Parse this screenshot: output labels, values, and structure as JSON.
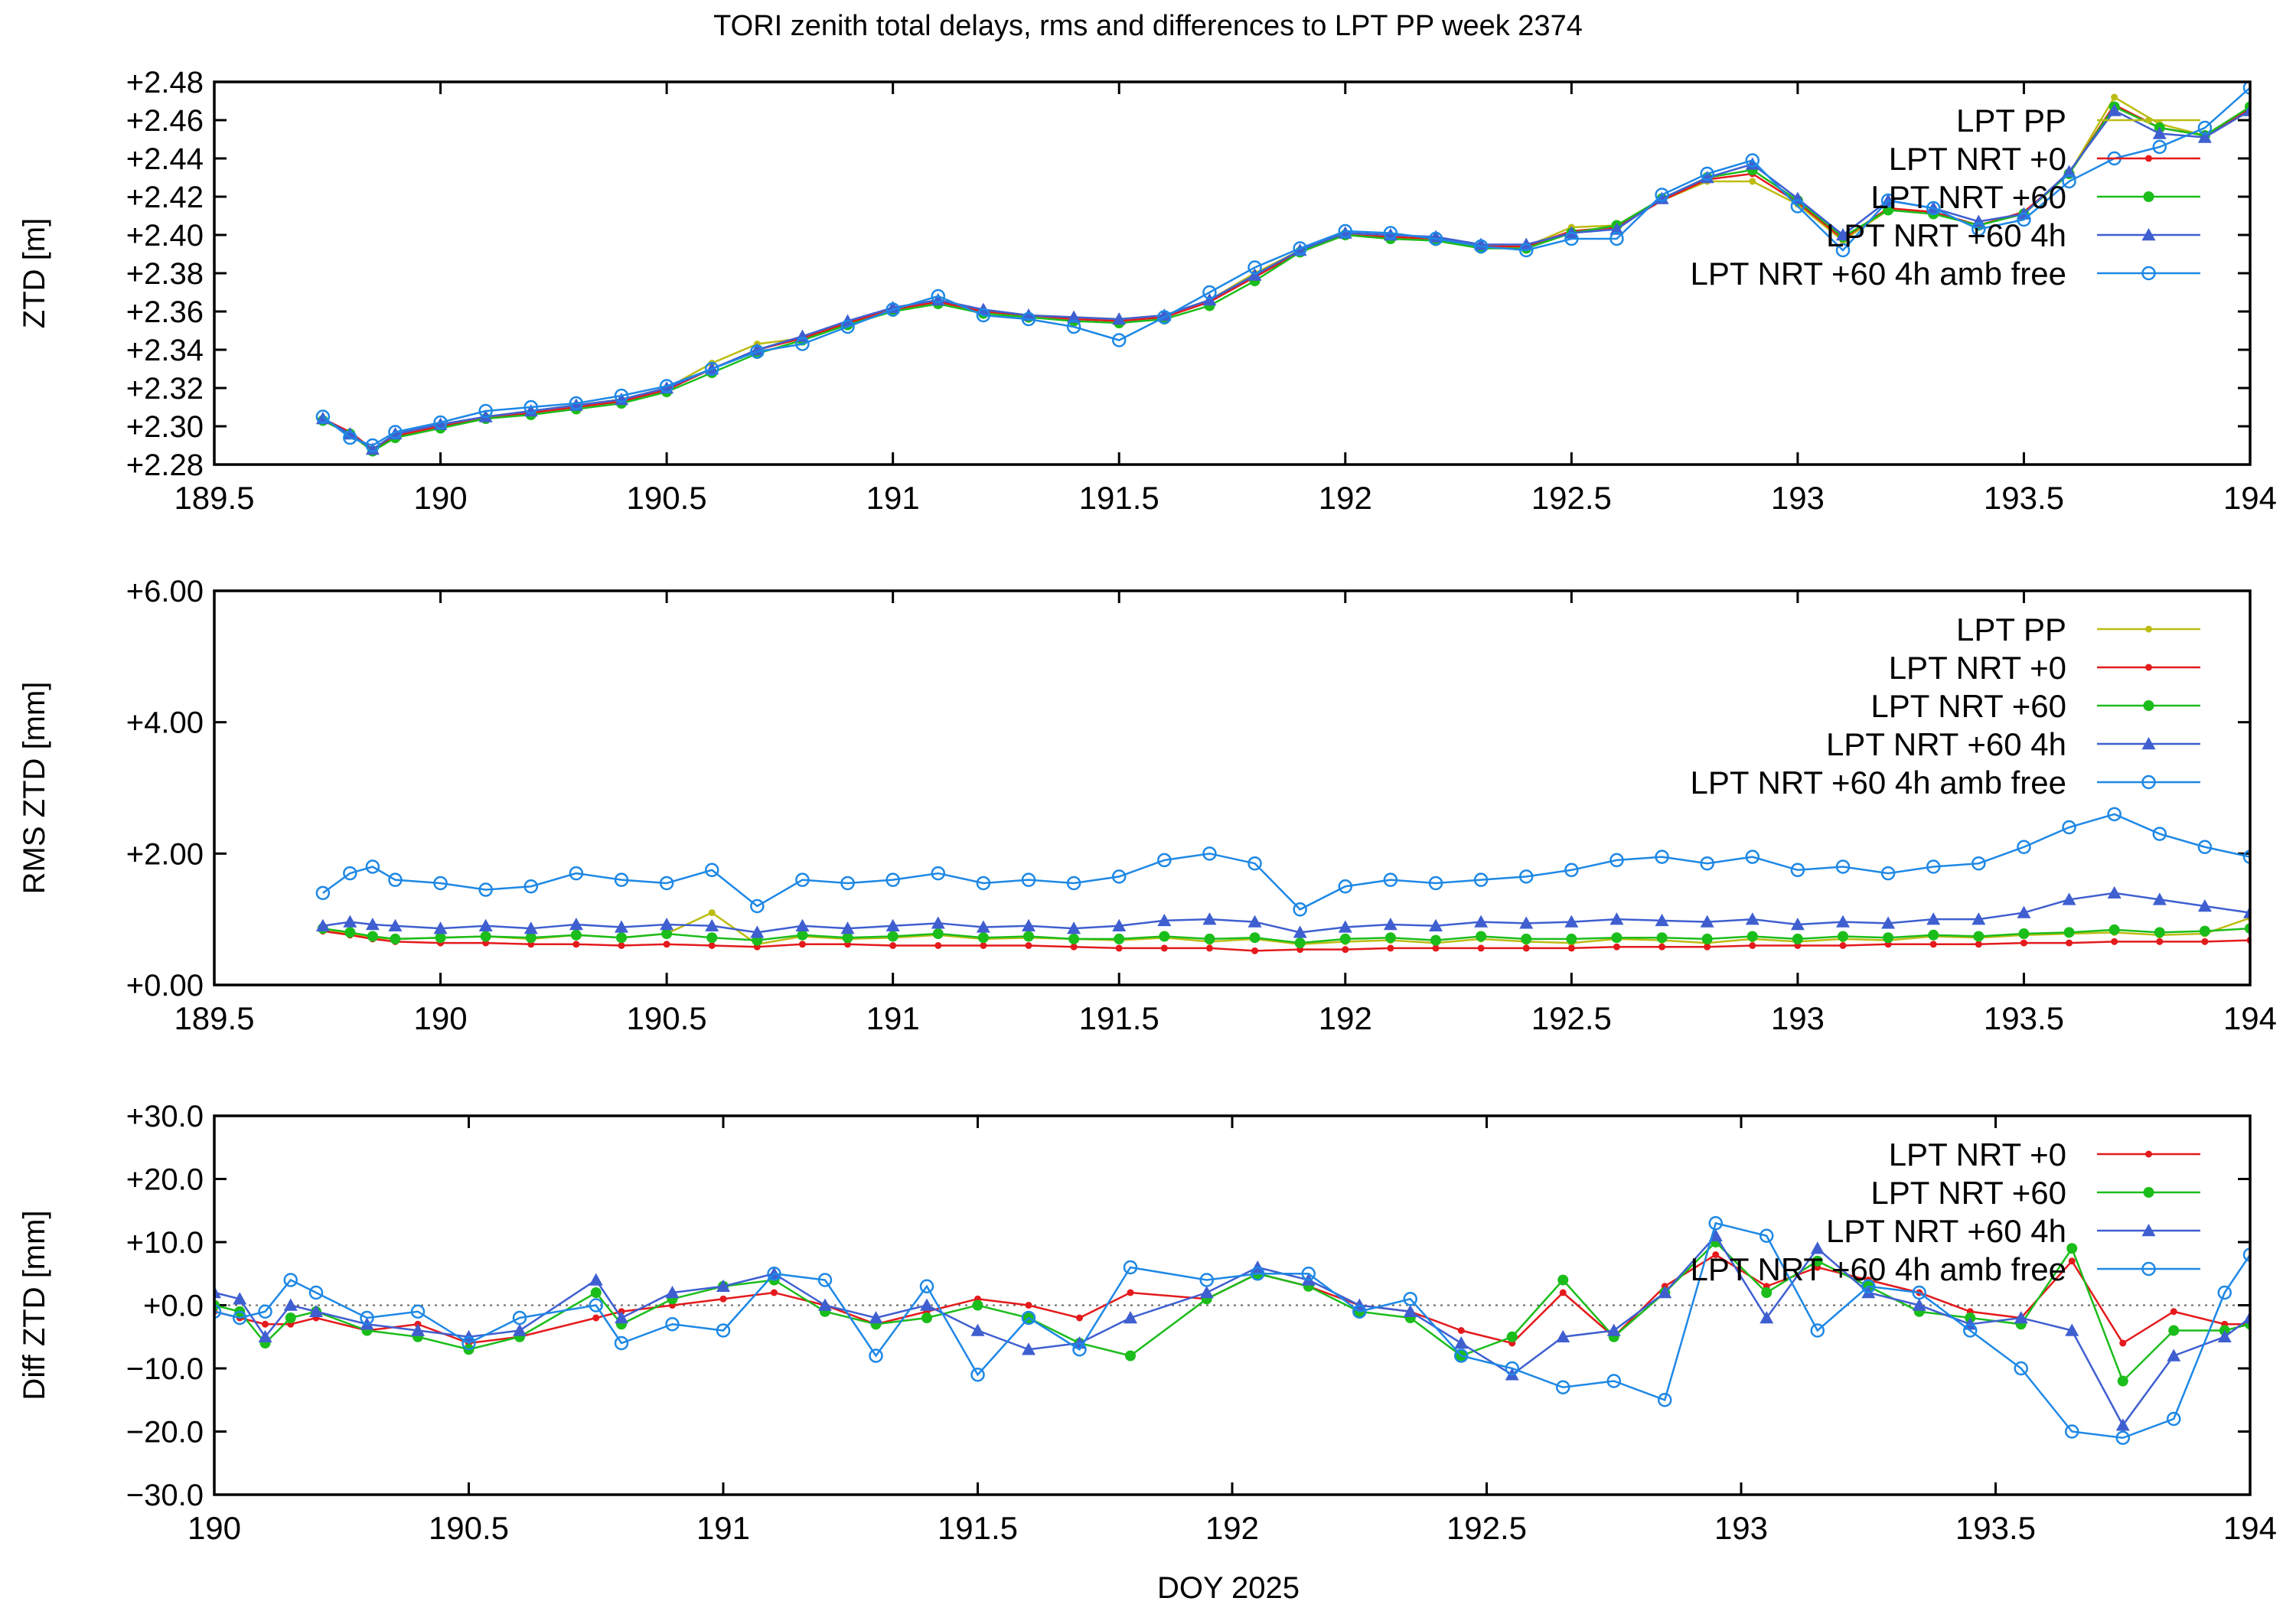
{
  "title": "TORI zenith total delays, rms and differences to LPT PP week 2374",
  "xlabel": "DOY 2025",
  "colors": {
    "LPT PP": "#bcbc12",
    "LPT NRT +0": "#e41a1c",
    "LPT NRT +60": "#1bbd1b",
    "LPT NRT +60 4h": "#3f5fd0",
    "LPT NRT +60 4h amb free": "#1e88e5",
    "axis": "#000000"
  },
  "chart_data": [
    {
      "type": "line",
      "ylabel": "ZTD [m]",
      "xlim": [
        189.5,
        194
      ],
      "ylim": [
        2.28,
        2.48
      ],
      "xticks": [
        "189.5",
        "190",
        "190.5",
        "191",
        "191.5",
        "192",
        "192.5",
        "193",
        "193.5",
        "194"
      ],
      "yticks": [
        "+2.28",
        "+2.30",
        "+2.32",
        "+2.34",
        "+2.36",
        "+2.38",
        "+2.40",
        "+2.42",
        "+2.44",
        "+2.46",
        "+2.48"
      ],
      "legend": "top-right",
      "legend_entries": [
        "LPT PP",
        "LPT NRT +0",
        "LPT NRT +60",
        "LPT NRT +60 4h",
        "LPT NRT +60 4h amb free"
      ],
      "x": [
        189.74,
        189.8,
        189.85,
        189.9,
        190.0,
        190.1,
        190.2,
        190.3,
        190.4,
        190.5,
        190.6,
        190.7,
        190.8,
        190.9,
        191.0,
        191.1,
        191.2,
        191.3,
        191.4,
        191.5,
        191.6,
        191.7,
        191.8,
        191.9,
        192.0,
        192.1,
        192.2,
        192.3,
        192.4,
        192.5,
        192.6,
        192.7,
        192.8,
        192.9,
        193.0,
        193.1,
        193.2,
        193.3,
        193.4,
        193.5,
        193.6,
        193.7,
        193.8,
        193.9,
        194.0
      ],
      "series": [
        {
          "name": "LPT PP",
          "marker": "dot",
          "values": [
            2.304,
            2.296,
            2.288,
            2.294,
            2.3,
            2.305,
            2.308,
            2.311,
            2.314,
            2.32,
            2.333,
            2.343,
            2.346,
            2.354,
            2.361,
            2.366,
            2.36,
            2.358,
            2.357,
            2.356,
            2.358,
            2.366,
            2.38,
            2.392,
            2.4,
            2.398,
            2.398,
            2.394,
            2.394,
            2.404,
            2.405,
            2.418,
            2.428,
            2.428,
            2.416,
            2.397,
            2.413,
            2.412,
            2.405,
            2.412,
            2.432,
            2.472,
            2.458,
            2.452,
            2.466
          ]
        },
        {
          "name": "LPT NRT +0",
          "marker": "dot",
          "values": [
            2.304,
            2.297,
            2.288,
            2.295,
            2.3,
            2.304,
            2.307,
            2.31,
            2.313,
            2.319,
            2.33,
            2.34,
            2.346,
            2.354,
            2.361,
            2.365,
            2.36,
            2.358,
            2.356,
            2.355,
            2.357,
            2.365,
            2.378,
            2.391,
            2.4,
            2.399,
            2.398,
            2.394,
            2.394,
            2.402,
            2.404,
            2.418,
            2.429,
            2.432,
            2.417,
            2.398,
            2.414,
            2.412,
            2.405,
            2.412,
            2.432,
            2.468,
            2.456,
            2.452,
            2.466
          ]
        },
        {
          "name": "LPT NRT +60",
          "marker": "dot",
          "values": [
            2.303,
            2.296,
            2.287,
            2.294,
            2.299,
            2.304,
            2.306,
            2.309,
            2.312,
            2.318,
            2.328,
            2.338,
            2.345,
            2.353,
            2.36,
            2.364,
            2.359,
            2.357,
            2.355,
            2.354,
            2.356,
            2.363,
            2.376,
            2.391,
            2.4,
            2.398,
            2.397,
            2.393,
            2.393,
            2.401,
            2.405,
            2.419,
            2.43,
            2.434,
            2.418,
            2.399,
            2.413,
            2.411,
            2.405,
            2.411,
            2.432,
            2.467,
            2.456,
            2.452,
            2.467
          ]
        },
        {
          "name": "LPT NRT +60 4h",
          "marker": "triangle",
          "values": [
            2.304,
            2.296,
            2.288,
            2.296,
            2.301,
            2.305,
            2.308,
            2.311,
            2.314,
            2.32,
            2.33,
            2.34,
            2.347,
            2.355,
            2.362,
            2.366,
            2.361,
            2.358,
            2.357,
            2.356,
            2.358,
            2.366,
            2.379,
            2.392,
            2.401,
            2.4,
            2.399,
            2.395,
            2.395,
            2.401,
            2.403,
            2.419,
            2.43,
            2.437,
            2.419,
            2.4,
            2.418,
            2.414,
            2.407,
            2.411,
            2.433,
            2.465,
            2.453,
            2.451,
            2.465
          ]
        },
        {
          "name": "LPT NRT +60 4h amb free",
          "marker": "circle",
          "values": [
            2.305,
            2.294,
            2.29,
            2.297,
            2.302,
            2.308,
            2.31,
            2.312,
            2.316,
            2.321,
            2.33,
            2.339,
            2.343,
            2.352,
            2.361,
            2.368,
            2.358,
            2.356,
            2.352,
            2.345,
            2.357,
            2.37,
            2.383,
            2.393,
            2.402,
            2.401,
            2.398,
            2.394,
            2.392,
            2.398,
            2.398,
            2.421,
            2.432,
            2.439,
            2.415,
            2.392,
            2.418,
            2.414,
            2.403,
            2.408,
            2.428,
            2.44,
            2.446,
            2.456,
            2.477
          ]
        }
      ]
    },
    {
      "type": "line",
      "ylabel": "RMS ZTD [mm]",
      "xlim": [
        189.5,
        194
      ],
      "ylim": [
        0,
        6
      ],
      "xticks": [
        "189.5",
        "190",
        "190.5",
        "191",
        "191.5",
        "192",
        "192.5",
        "193",
        "193.5",
        "194"
      ],
      "yticks": [
        "+0.00",
        "+2.00",
        "+4.00",
        "+6.00"
      ],
      "legend": "top-right",
      "legend_entries": [
        "LPT PP",
        "LPT NRT +0",
        "LPT NRT +60",
        "LPT NRT +60 4h",
        "LPT NRT +60 4h amb free"
      ],
      "x": [
        189.74,
        189.8,
        189.85,
        189.9,
        190.0,
        190.1,
        190.2,
        190.3,
        190.4,
        190.5,
        190.6,
        190.7,
        190.8,
        190.9,
        191.0,
        191.1,
        191.2,
        191.3,
        191.4,
        191.5,
        191.6,
        191.7,
        191.8,
        191.9,
        192.0,
        192.1,
        192.2,
        192.3,
        192.4,
        192.5,
        192.6,
        192.7,
        192.8,
        192.9,
        193.0,
        193.1,
        193.2,
        193.3,
        193.4,
        193.5,
        193.6,
        193.7,
        193.8,
        193.9,
        194.0
      ],
      "series": [
        {
          "name": "LPT PP",
          "marker": "dot",
          "values": [
            0.85,
            0.78,
            0.72,
            0.7,
            0.72,
            0.74,
            0.7,
            0.76,
            0.72,
            0.78,
            1.1,
            0.62,
            0.74,
            0.7,
            0.72,
            0.76,
            0.7,
            0.72,
            0.7,
            0.68,
            0.72,
            0.66,
            0.7,
            0.62,
            0.66,
            0.68,
            0.64,
            0.7,
            0.66,
            0.64,
            0.7,
            0.68,
            0.64,
            0.7,
            0.66,
            0.7,
            0.68,
            0.74,
            0.72,
            0.76,
            0.78,
            0.8,
            0.76,
            0.78,
            1.02
          ]
        },
        {
          "name": "LPT NRT +0",
          "marker": "dot",
          "values": [
            0.82,
            0.76,
            0.7,
            0.66,
            0.64,
            0.64,
            0.62,
            0.62,
            0.6,
            0.62,
            0.6,
            0.58,
            0.62,
            0.62,
            0.6,
            0.6,
            0.6,
            0.6,
            0.58,
            0.56,
            0.56,
            0.56,
            0.52,
            0.54,
            0.54,
            0.56,
            0.56,
            0.56,
            0.56,
            0.56,
            0.58,
            0.58,
            0.58,
            0.6,
            0.6,
            0.6,
            0.62,
            0.62,
            0.62,
            0.64,
            0.64,
            0.66,
            0.66,
            0.66,
            0.68
          ]
        },
        {
          "name": "LPT NRT +60",
          "marker": "dot",
          "values": [
            0.86,
            0.8,
            0.74,
            0.7,
            0.72,
            0.74,
            0.72,
            0.76,
            0.72,
            0.78,
            0.72,
            0.68,
            0.76,
            0.72,
            0.74,
            0.78,
            0.72,
            0.74,
            0.7,
            0.7,
            0.74,
            0.7,
            0.72,
            0.64,
            0.7,
            0.72,
            0.68,
            0.74,
            0.7,
            0.7,
            0.72,
            0.72,
            0.7,
            0.74,
            0.7,
            0.74,
            0.72,
            0.76,
            0.74,
            0.78,
            0.8,
            0.84,
            0.8,
            0.82,
            0.86
          ]
        },
        {
          "name": "LPT NRT +60 4h",
          "marker": "triangle",
          "values": [
            0.9,
            0.96,
            0.92,
            0.9,
            0.86,
            0.9,
            0.86,
            0.92,
            0.88,
            0.92,
            0.9,
            0.8,
            0.9,
            0.86,
            0.9,
            0.94,
            0.88,
            0.9,
            0.86,
            0.9,
            0.98,
            1.0,
            0.96,
            0.8,
            0.88,
            0.92,
            0.9,
            0.96,
            0.94,
            0.96,
            1.0,
            0.98,
            0.96,
            1.0,
            0.92,
            0.96,
            0.94,
            1.0,
            1.0,
            1.1,
            1.3,
            1.4,
            1.3,
            1.2,
            1.1
          ]
        },
        {
          "name": "LPT NRT +60 4h amb free",
          "marker": "circle",
          "values": [
            1.4,
            1.7,
            1.8,
            1.6,
            1.55,
            1.45,
            1.5,
            1.7,
            1.6,
            1.55,
            1.75,
            1.2,
            1.6,
            1.55,
            1.6,
            1.7,
            1.55,
            1.6,
            1.55,
            1.65,
            1.9,
            2.0,
            1.85,
            1.15,
            1.5,
            1.6,
            1.55,
            1.6,
            1.65,
            1.75,
            1.9,
            1.95,
            1.85,
            1.95,
            1.75,
            1.8,
            1.7,
            1.8,
            1.85,
            2.1,
            2.4,
            2.6,
            2.3,
            2.1,
            1.95
          ]
        }
      ]
    },
    {
      "type": "line",
      "ylabel": "Diff ZTD [mm]",
      "xlim": [
        190,
        194
      ],
      "ylim": [
        -30,
        30
      ],
      "xticks": [
        "190",
        "190.5",
        "191",
        "191.5",
        "192",
        "192.5",
        "193",
        "193.5",
        "194"
      ],
      "yticks": [
        "−30.0",
        "−20.0",
        "−10.0",
        "+0.0",
        "+10.0",
        "+20.0",
        "+30.0"
      ],
      "zero_line": true,
      "legend": "top-right",
      "legend_entries": [
        "LPT NRT +0",
        "LPT NRT +60",
        "LPT NRT +60 4h",
        "LPT NRT +60 4h amb free"
      ],
      "x": [
        190.0,
        190.05,
        190.1,
        190.15,
        190.2,
        190.3,
        190.4,
        190.5,
        190.6,
        190.75,
        190.8,
        190.9,
        191.0,
        191.1,
        191.2,
        191.3,
        191.4,
        191.5,
        191.6,
        191.7,
        191.8,
        191.95,
        192.05,
        192.15,
        192.25,
        192.35,
        192.45,
        192.55,
        192.65,
        192.75,
        192.85,
        192.95,
        193.05,
        193.15,
        193.25,
        193.35,
        193.45,
        193.55,
        193.65,
        193.75,
        193.85,
        193.95,
        194.0
      ],
      "series": [
        {
          "name": "LPT NRT +0",
          "marker": "dot",
          "values": [
            -1,
            -2,
            -3,
            -3,
            -2,
            -4,
            -3,
            -6,
            -5,
            -2,
            -1,
            0,
            1,
            2,
            0,
            -3,
            -1,
            1,
            0,
            -2,
            2,
            1,
            5,
            3,
            0,
            -1,
            -4,
            -6,
            2,
            -5,
            3,
            8,
            3,
            6,
            4,
            2,
            -1,
            -2,
            7,
            -6,
            -1,
            -3,
            -3
          ]
        },
        {
          "name": "LPT NRT +60",
          "marker": "dot",
          "values": [
            0,
            -1,
            -6,
            -2,
            -1,
            -4,
            -5,
            -7,
            -5,
            2,
            -3,
            1,
            3,
            4,
            -1,
            -3,
            -2,
            0,
            -2,
            -6,
            -8,
            1,
            5,
            3,
            -1,
            -2,
            -8,
            -5,
            4,
            -5,
            2,
            10,
            2,
            7,
            3,
            -1,
            -2,
            -3,
            9,
            -12,
            -4,
            -4,
            -3
          ]
        },
        {
          "name": "LPT NRT +60 4h",
          "marker": "triangle",
          "values": [
            2,
            1,
            -5,
            0,
            -1,
            -3,
            -4,
            -5,
            -4,
            4,
            -2,
            2,
            3,
            5,
            0,
            -2,
            0,
            -4,
            -7,
            -6,
            -2,
            2,
            6,
            4,
            0,
            -1,
            -6,
            -11,
            -5,
            -4,
            2,
            11,
            -2,
            9,
            2,
            0,
            -3,
            -2,
            -4,
            -19,
            -8,
            -5,
            -2
          ]
        },
        {
          "name": "LPT NRT +60 4h amb free",
          "marker": "circle",
          "values": [
            -1,
            -2,
            -1,
            4,
            2,
            -2,
            -1,
            -6,
            -2,
            0,
            -6,
            -3,
            -4,
            5,
            4,
            -8,
            3,
            -11,
            -2,
            -7,
            6,
            4,
            5,
            5,
            -1,
            1,
            -8,
            -10,
            -13,
            -12,
            -15,
            13,
            11,
            -4,
            3,
            2,
            -4,
            -10,
            -20,
            -21,
            -18,
            2,
            8
          ]
        }
      ]
    }
  ]
}
